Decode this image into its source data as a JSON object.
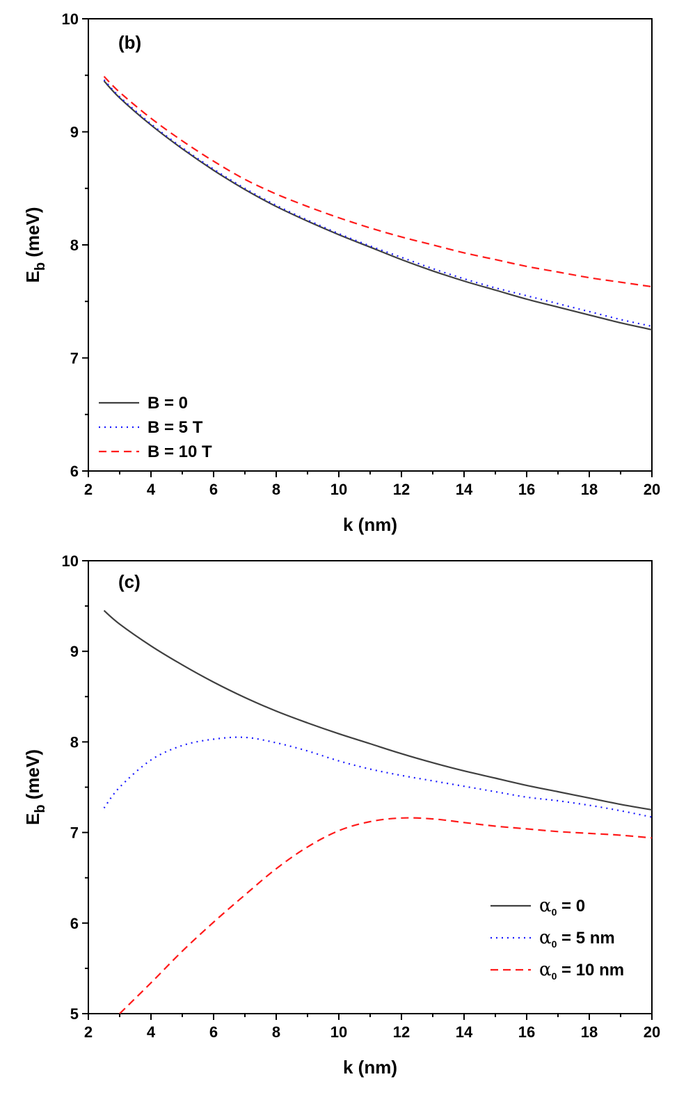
{
  "chart_data": [
    {
      "type": "line",
      "panel_label": "(b)",
      "xlabel": "k (nm)",
      "ylabel": "E_b (meV)",
      "ylabel_parts": {
        "main": "E",
        "sub": "b",
        "rest": " (meV)"
      },
      "xlim": [
        2,
        20
      ],
      "ylim": [
        6,
        10
      ],
      "xticks": [
        2,
        4,
        6,
        8,
        10,
        12,
        14,
        16,
        18,
        20
      ],
      "yticks": [
        6,
        7,
        8,
        9,
        10
      ],
      "legend_position": "bottom-left",
      "series": [
        {
          "name": "B = 0",
          "legend_label": "B = 0",
          "color": "#404040",
          "dash": "solid",
          "x": [
            2.5,
            3,
            4,
            5,
            6,
            7,
            8,
            9,
            10,
            11,
            12,
            13,
            14,
            15,
            16,
            17,
            18,
            19,
            20
          ],
          "y": [
            9.45,
            9.3,
            9.06,
            8.85,
            8.66,
            8.49,
            8.34,
            8.21,
            8.09,
            7.98,
            7.87,
            7.77,
            7.68,
            7.6,
            7.52,
            7.45,
            7.38,
            7.31,
            7.25
          ]
        },
        {
          "name": "B = 5 T",
          "legend_label": "B = 5 T",
          "color": "#1a1aff",
          "dash": "dotted",
          "x": [
            2.5,
            3,
            4,
            5,
            6,
            7,
            8,
            9,
            10,
            11,
            12,
            13,
            14,
            15,
            16,
            17,
            18,
            19,
            20
          ],
          "y": [
            9.46,
            9.31,
            9.07,
            8.86,
            8.67,
            8.5,
            8.35,
            8.22,
            8.1,
            7.99,
            7.89,
            7.79,
            7.7,
            7.62,
            7.55,
            7.48,
            7.41,
            7.34,
            7.28
          ]
        },
        {
          "name": "B = 10 T",
          "legend_label": "B = 10 T",
          "color": "#ff1a1a",
          "dash": "dashed",
          "x": [
            2.5,
            3,
            4,
            5,
            6,
            7,
            8,
            9,
            10,
            11,
            12,
            13,
            14,
            15,
            16,
            17,
            18,
            19,
            20
          ],
          "y": [
            9.49,
            9.35,
            9.12,
            8.92,
            8.74,
            8.58,
            8.45,
            8.34,
            8.24,
            8.15,
            8.07,
            8.0,
            7.93,
            7.87,
            7.81,
            7.76,
            7.71,
            7.67,
            7.63
          ]
        }
      ]
    },
    {
      "type": "line",
      "panel_label": "(c)",
      "xlabel": "k (nm)",
      "ylabel": "E_b (meV)",
      "ylabel_parts": {
        "main": "E",
        "sub": "b",
        "rest": " (meV)"
      },
      "xlim": [
        2,
        20
      ],
      "ylim": [
        5,
        10
      ],
      "xticks": [
        2,
        4,
        6,
        8,
        10,
        12,
        14,
        16,
        18,
        20
      ],
      "yticks": [
        5,
        6,
        7,
        8,
        9,
        10
      ],
      "legend_position": "bottom-right",
      "series": [
        {
          "name": "α0 = 0",
          "legend_symbol": "α",
          "legend_sub": "0",
          "legend_rest": " = 0",
          "color": "#404040",
          "dash": "solid",
          "x": [
            2.5,
            3,
            4,
            5,
            6,
            7,
            8,
            9,
            10,
            11,
            12,
            13,
            14,
            15,
            16,
            17,
            18,
            19,
            20
          ],
          "y": [
            9.45,
            9.3,
            9.06,
            8.85,
            8.66,
            8.49,
            8.34,
            8.21,
            8.09,
            7.98,
            7.87,
            7.77,
            7.68,
            7.6,
            7.52,
            7.45,
            7.38,
            7.31,
            7.25
          ]
        },
        {
          "name": "α0 = 5 nm",
          "legend_symbol": "α",
          "legend_sub": "0",
          "legend_rest": " = 5 nm",
          "color": "#1a1aff",
          "dash": "dotted",
          "x": [
            2.5,
            3,
            4,
            5,
            6,
            7,
            8,
            9,
            10,
            11,
            12,
            13,
            14,
            15,
            16,
            17,
            18,
            19,
            20
          ],
          "y": [
            7.27,
            7.5,
            7.8,
            7.96,
            8.03,
            8.05,
            7.99,
            7.9,
            7.79,
            7.7,
            7.63,
            7.57,
            7.51,
            7.45,
            7.39,
            7.35,
            7.3,
            7.24,
            7.17
          ]
        },
        {
          "name": "α0 = 10 nm",
          "legend_symbol": "α",
          "legend_sub": "0",
          "legend_rest": " = 10 nm",
          "color": "#ff1a1a",
          "dash": "dashed",
          "x": [
            3,
            4,
            5,
            6,
            7,
            8,
            9,
            10,
            11,
            12,
            13,
            14,
            15,
            16,
            17,
            18,
            19,
            20
          ],
          "y": [
            5.0,
            5.34,
            5.69,
            6.01,
            6.31,
            6.6,
            6.84,
            7.02,
            7.12,
            7.16,
            7.15,
            7.11,
            7.07,
            7.04,
            7.01,
            6.99,
            6.97,
            6.94
          ]
        }
      ]
    }
  ]
}
